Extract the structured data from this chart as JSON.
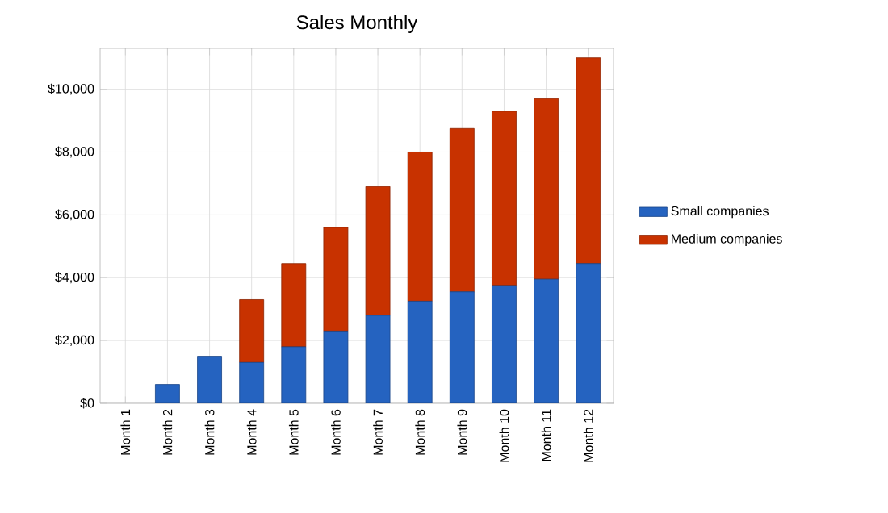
{
  "chart_data": {
    "type": "bar",
    "title": "Sales Monthly",
    "stacked": true,
    "categories": [
      "Month 1",
      "Month 2",
      "Month 3",
      "Month 4",
      "Month 5",
      "Month 6",
      "Month 7",
      "Month 8",
      "Month 9",
      "Month 10",
      "Month 11",
      "Month 12"
    ],
    "series": [
      {
        "name": "Small companies",
        "color": "#2563c0",
        "values": [
          0,
          600,
          1500,
          1300,
          1800,
          2300,
          2800,
          3250,
          3550,
          3750,
          3950,
          4450
        ]
      },
      {
        "name": "Medium companies",
        "color": "#c83200",
        "values": [
          0,
          0,
          0,
          2000,
          2650,
          3300,
          4100,
          4750,
          5200,
          5550,
          5750,
          6550
        ]
      }
    ],
    "ylim": [
      0,
      11300
    ],
    "yticks": [
      {
        "value": 0,
        "label": "$0"
      },
      {
        "value": 2000,
        "label": "$2,000"
      },
      {
        "value": 4000,
        "label": "$4,000"
      },
      {
        "value": 6000,
        "label": "$6,000"
      },
      {
        "value": 8000,
        "label": "$8,000"
      },
      {
        "value": 10000,
        "label": "$10,000"
      }
    ],
    "grid": true,
    "legend": "right"
  }
}
